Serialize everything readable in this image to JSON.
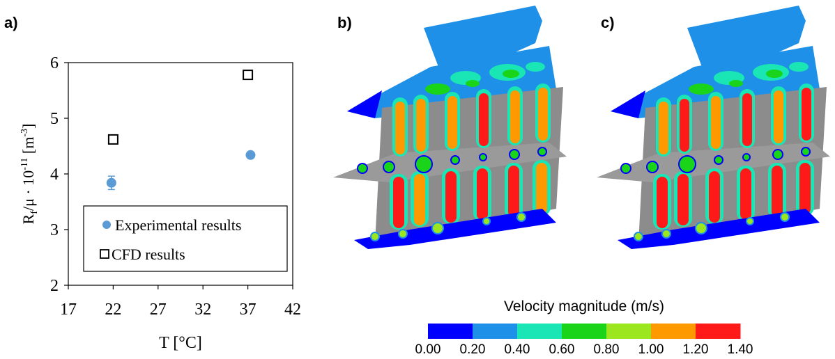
{
  "panel_labels": {
    "a": "a)",
    "b": "b)",
    "c": "c)"
  },
  "chart_data": {
    "type": "scatter",
    "title": "",
    "xlabel": "T [°C]",
    "ylabel": "R_f/μ · 10^-11 [m^-3]",
    "ylabel_parts": {
      "main": "R",
      "sub": "f",
      "mid": "/μ · 10",
      "exp": "-11",
      "unit_open": " [m",
      "unit_exp": "-3",
      "unit_close": "]"
    },
    "xlim": [
      17,
      42
    ],
    "ylim": [
      2,
      6
    ],
    "xticks": [
      17,
      22,
      27,
      32,
      37,
      42
    ],
    "yticks": [
      2,
      3,
      4,
      5,
      6
    ],
    "grid": false,
    "legend_position": "bottom-right",
    "series": [
      {
        "name": "Experimental results",
        "marker": "filled-circle",
        "color": "#5b9bd5",
        "x": [
          21.8,
          37.3
        ],
        "y": [
          3.84,
          4.34
        ],
        "err": [
          0.12,
          0.04
        ]
      },
      {
        "name": "CFD results",
        "marker": "open-square",
        "color": "#000000",
        "x": [
          22.0,
          37.0
        ],
        "y": [
          4.62,
          5.78
        ]
      }
    ]
  },
  "colorbar": {
    "title": "Velocity magnitude (m/s)",
    "ticks": [
      "0.00",
      "0.20",
      "0.40",
      "0.60",
      "0.80",
      "1.00",
      "1.20",
      "1.40"
    ],
    "colors": [
      "#0000ff",
      "#1e90e8",
      "#19e6b4",
      "#19d419",
      "#9be61e",
      "#ff9900",
      "#ff1a1a"
    ]
  },
  "renders": [
    {
      "id": "b",
      "tube_fill": [
        "#ff1a1a",
        "#ff9900",
        "#ff1a1a",
        "#ff1a1a"
      ]
    },
    {
      "id": "c",
      "tube_fill": [
        "#ff1a1a",
        "#ff1a1a",
        "#ff1a1a",
        "#ff1a1a"
      ]
    }
  ]
}
